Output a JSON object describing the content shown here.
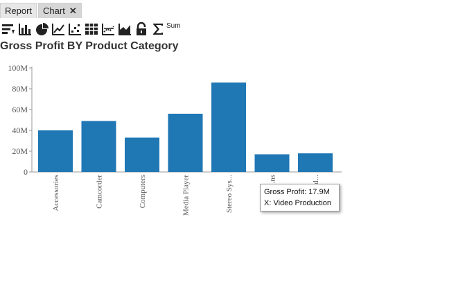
{
  "tabs": [
    {
      "label": "Report"
    },
    {
      "label": "Chart",
      "close": "✕"
    }
  ],
  "toolbar": {
    "sum_label": "Sum",
    "icons": [
      "sort-icon",
      "bar-chart-icon",
      "pie-chart-icon",
      "line-chart-icon",
      "scatter-icon",
      "table-grid-icon",
      "trend-icon",
      "area-chart-icon",
      "lock-icon",
      "sigma-icon"
    ]
  },
  "colors": {
    "bar": "#1f77b4",
    "axis": "#999999",
    "tick_text": "#555555"
  },
  "chart_data": {
    "type": "bar",
    "title": "Gross Profit BY Product Category",
    "categories": [
      "Accessories",
      "Camcorder",
      "Computers",
      "Media Player",
      "Stereo Sys...",
      "...ns",
      "V...d..."
    ],
    "values": [
      40000000,
      49000000,
      33000000,
      56000000,
      86000000,
      17000000,
      17900000
    ],
    "ylim": [
      0,
      100000000
    ],
    "yticks": [
      "0",
      "20M",
      "40M",
      "60M",
      "80M",
      "100M"
    ],
    "grid": false,
    "legend": "none"
  },
  "tooltip": {
    "line1": "Gross Profit: 17.9M",
    "line2": "X: Video Production"
  }
}
